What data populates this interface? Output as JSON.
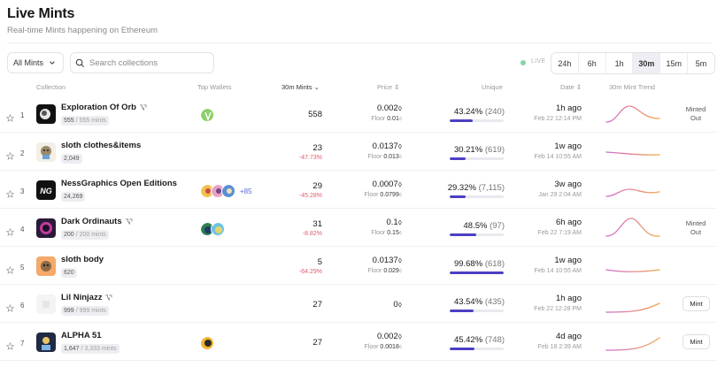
{
  "header": {
    "title": "Live Mints",
    "subtitle": "Real-time Mints happening on Ethereum"
  },
  "toolbar": {
    "filter_label": "All Mints",
    "search_placeholder": "Search collections",
    "live_label": "LIVE",
    "timeframes": [
      "24h",
      "6h",
      "1h",
      "30m",
      "15m",
      "5m"
    ],
    "active_timeframe": "30m"
  },
  "table": {
    "columns": {
      "collection": "Collection",
      "top_wallets": "Top Wallets",
      "mints": "30m Mints",
      "price": "Price",
      "unique": "Unique",
      "date": "Date",
      "trend": "30m Mint Trend"
    },
    "rows": [
      {
        "rank": "1",
        "name": "Exploration Of Orb",
        "verified": true,
        "mints_count": "555",
        "mints_total": "/ 555 mints",
        "wallet_more": "",
        "mints_30m": "558",
        "mints_change": "",
        "price": "0.002",
        "floor": "0.01",
        "unique": "43.24%",
        "unique_count": "(240)",
        "unique_pct": 43.24,
        "date": "1h ago",
        "date_full": "Feb 22 12:14 PM",
        "status": "Minted Out",
        "action": ""
      },
      {
        "rank": "2",
        "name": "sloth clothes&items",
        "verified": false,
        "mints_count": "2,049",
        "mints_total": "",
        "wallet_more": "",
        "mints_30m": "23",
        "mints_change": "-47.73%",
        "price": "0.0137",
        "floor": "0.013",
        "unique": "30.21%",
        "unique_count": "(619)",
        "unique_pct": 30.21,
        "date": "1w ago",
        "date_full": "Feb 14 10:55 AM",
        "status": "",
        "action": ""
      },
      {
        "rank": "3",
        "name": "NessGraphics Open Editions",
        "verified": false,
        "mints_count": "24,269",
        "mints_total": "",
        "wallet_more": "+85",
        "mints_30m": "29",
        "mints_change": "-45.28%",
        "price": "0.0007",
        "floor": "0.0799",
        "unique": "29.32%",
        "unique_count": "(7,115)",
        "unique_pct": 29.32,
        "date": "3w ago",
        "date_full": "Jan 29 2:04 AM",
        "status": "",
        "action": ""
      },
      {
        "rank": "4",
        "name": "Dark Ordinauts",
        "verified": true,
        "mints_count": "200",
        "mints_total": "/ 200 mints",
        "wallet_more": "",
        "mints_30m": "31",
        "mints_change": "-8.82%",
        "price": "0.1",
        "floor": "0.15",
        "unique": "48.5%",
        "unique_count": "(97)",
        "unique_pct": 48.5,
        "date": "6h ago",
        "date_full": "Feb 22 7:19 AM",
        "status": "Minted Out",
        "action": ""
      },
      {
        "rank": "5",
        "name": "sloth body",
        "verified": false,
        "mints_count": "620",
        "mints_total": "",
        "wallet_more": "",
        "mints_30m": "5",
        "mints_change": "-64.29%",
        "price": "0.0137",
        "floor": "0.029",
        "unique": "99.68%",
        "unique_count": "(618)",
        "unique_pct": 99.68,
        "date": "1w ago",
        "date_full": "Feb 14 10:55 AM",
        "status": "",
        "action": ""
      },
      {
        "rank": "6",
        "name": "Lil Ninjazz",
        "verified": true,
        "mints_count": "999",
        "mints_total": "/ 999 mints",
        "wallet_more": "",
        "mints_30m": "27",
        "mints_change": "",
        "price": "0",
        "floor": "",
        "unique": "43.54%",
        "unique_count": "(435)",
        "unique_pct": 43.54,
        "date": "1h ago",
        "date_full": "Feb 22 12:28 PM",
        "status": "",
        "action": "Mint"
      },
      {
        "rank": "7",
        "name": "ALPHA 51",
        "verified": false,
        "mints_count": "1,647",
        "mints_total": "/ 3,333 mints",
        "wallet_more": "",
        "mints_30m": "27",
        "mints_change": "",
        "price": "0.002",
        "floor": "0.0018",
        "unique": "45.42%",
        "unique_count": "(748)",
        "unique_pct": 45.42,
        "date": "4d ago",
        "date_full": "Feb 18 2:39 AM",
        "status": "",
        "action": "Mint"
      }
    ]
  },
  "labels": {
    "floor_prefix": "Floor",
    "eth_symbol": "⬨"
  },
  "colors": {
    "accent": "#4b3fc4",
    "negative": "#e15b6b",
    "trend_start": "#d06bd2",
    "trend_end": "#f2a84b",
    "live": "#86d6a0"
  }
}
